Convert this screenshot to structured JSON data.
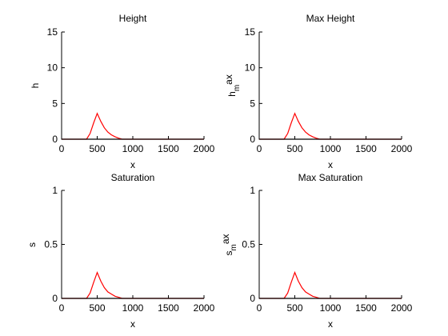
{
  "chart_data": [
    {
      "type": "line",
      "title": "Height",
      "xlabel": "x",
      "ylabel": "h",
      "xlim": [
        0,
        2000
      ],
      "ylim": [
        0,
        15
      ],
      "xticks": [
        0,
        500,
        1000,
        1500,
        2000
      ],
      "yticks": [
        0,
        5,
        10,
        15
      ],
      "series": [
        {
          "color": "#ff0000",
          "x": [
            0,
            350,
            400,
            450,
            500,
            550,
            600,
            650,
            700,
            750,
            800,
            850,
            2000
          ],
          "y": [
            0,
            0,
            0.8,
            2.3,
            3.6,
            2.5,
            1.6,
            1.0,
            0.6,
            0.35,
            0.15,
            0,
            0
          ]
        },
        {
          "color": "#000000",
          "x": [
            0,
            2000
          ],
          "y": [
            0,
            0
          ]
        }
      ]
    },
    {
      "type": "line",
      "title": "Max Height",
      "xlabel": "x",
      "ylabel": "h_max",
      "ylabel_main": "h",
      "ylabel_sub": "m",
      "ylabel_tail": "ax",
      "xlim": [
        0,
        2000
      ],
      "ylim": [
        0,
        15
      ],
      "xticks": [
        0,
        500,
        1000,
        1500,
        2000
      ],
      "yticks": [
        0,
        5,
        10,
        15
      ],
      "series": [
        {
          "color": "#ff0000",
          "x": [
            0,
            350,
            400,
            450,
            500,
            550,
            600,
            650,
            700,
            750,
            800,
            850,
            2000
          ],
          "y": [
            0,
            0,
            0.8,
            2.3,
            3.6,
            2.5,
            1.6,
            1.0,
            0.6,
            0.35,
            0.15,
            0,
            0
          ]
        },
        {
          "color": "#000000",
          "x": [
            0,
            2000
          ],
          "y": [
            0,
            0
          ]
        }
      ]
    },
    {
      "type": "line",
      "title": "Saturation",
      "xlabel": "x",
      "ylabel": "s",
      "xlim": [
        0,
        2000
      ],
      "ylim": [
        0,
        1
      ],
      "xticks": [
        0,
        500,
        1000,
        1500,
        2000
      ],
      "yticks": [
        0,
        0.5,
        1
      ],
      "series": [
        {
          "color": "#ff0000",
          "x": [
            0,
            350,
            400,
            450,
            500,
            550,
            600,
            650,
            700,
            750,
            800,
            850,
            2000
          ],
          "y": [
            0,
            0,
            0.05,
            0.15,
            0.24,
            0.16,
            0.1,
            0.06,
            0.04,
            0.02,
            0.01,
            0,
            0
          ]
        },
        {
          "color": "#000000",
          "x": [
            0,
            2000
          ],
          "y": [
            0,
            0
          ]
        }
      ]
    },
    {
      "type": "line",
      "title": "Max Saturation",
      "xlabel": "x",
      "ylabel": "s_max",
      "ylabel_main": "s",
      "ylabel_sub": "m",
      "ylabel_tail": "ax",
      "xlim": [
        0,
        2000
      ],
      "ylim": [
        0,
        1
      ],
      "xticks": [
        0,
        500,
        1000,
        1500,
        2000
      ],
      "yticks": [
        0,
        0.5,
        1
      ],
      "series": [
        {
          "color": "#ff0000",
          "x": [
            0,
            350,
            400,
            450,
            500,
            550,
            600,
            650,
            700,
            750,
            800,
            850,
            2000
          ],
          "y": [
            0,
            0,
            0.05,
            0.15,
            0.24,
            0.16,
            0.1,
            0.06,
            0.04,
            0.02,
            0.01,
            0,
            0
          ]
        },
        {
          "color": "#000000",
          "x": [
            0,
            2000
          ],
          "y": [
            0,
            0
          ]
        }
      ]
    }
  ]
}
